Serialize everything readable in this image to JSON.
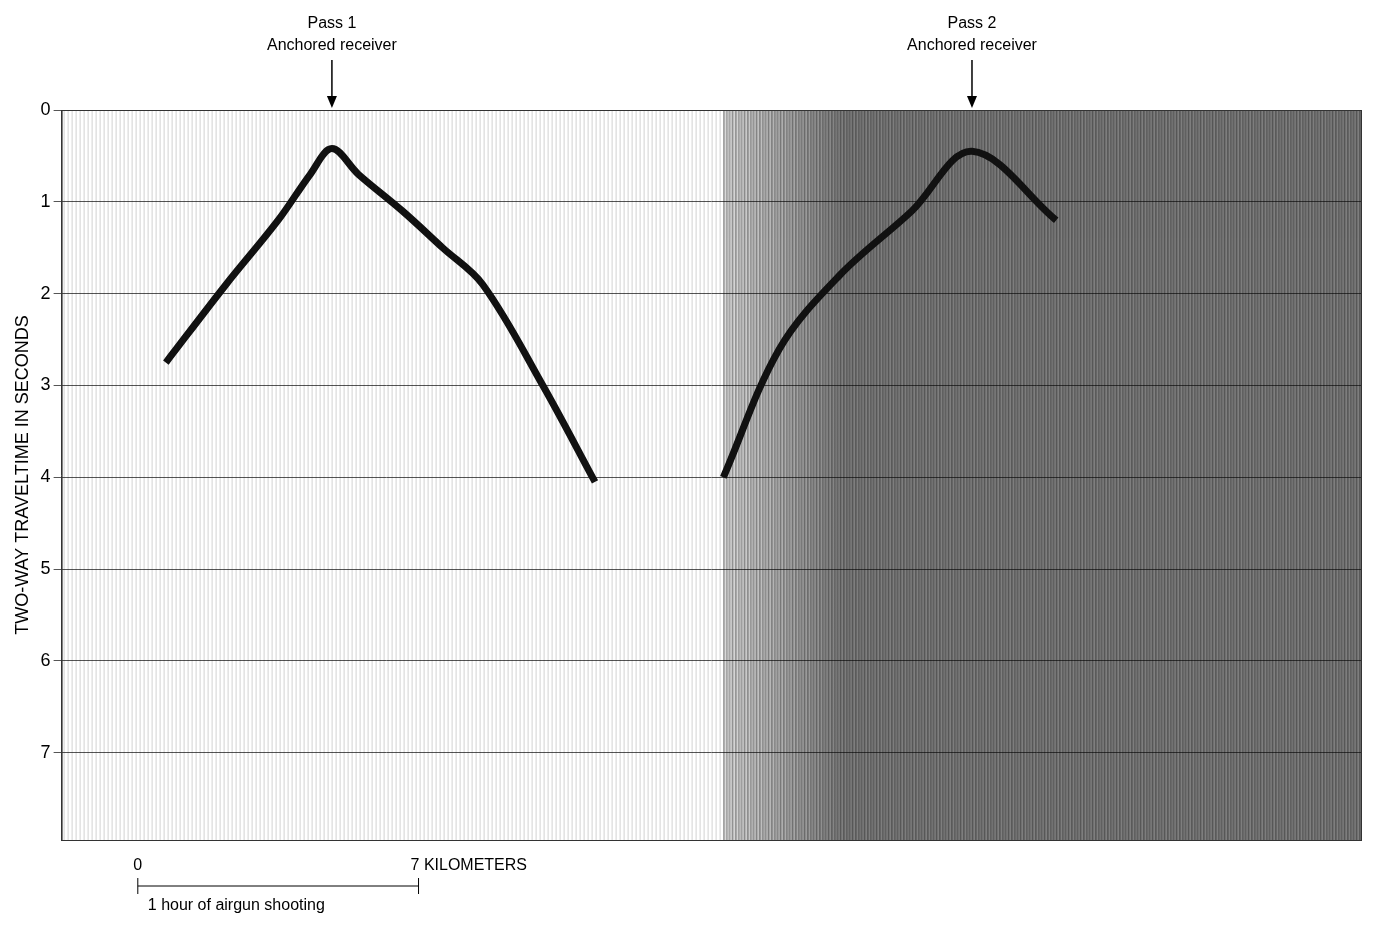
{
  "chart_data": {
    "type": "scatter",
    "y_label": "TWO-WAY TRAVELTIME IN SECONDS",
    "xlim": [
      0,
      32.4
    ],
    "ylim": [
      0,
      7.95
    ],
    "yticks": [
      0,
      1,
      2,
      3,
      4,
      5,
      6,
      7
    ],
    "grid": true,
    "tick_labels": "y",
    "color": "#111111",
    "line_style": "solid",
    "series": [
      {
        "name": "Pass 1",
        "color": "#111111",
        "x": [
          2.6,
          4.1,
          5.4,
          6.2,
          6.74,
          7.4,
          8.5,
          9.5,
          10.5,
          12.0,
          13.3
        ],
        "values": [
          2.75,
          1.9,
          1.2,
          0.7,
          0.42,
          0.7,
          1.1,
          1.5,
          1.9,
          3.0,
          4.05
        ]
      },
      {
        "name": "Pass 2",
        "color": "#111111",
        "x": [
          16.5,
          17.9,
          19.4,
          21.2,
          22.7,
          24.8
        ],
        "values": [
          4.0,
          2.6,
          1.8,
          1.1,
          0.45,
          1.2
        ]
      }
    ],
    "noise_zone": [
      16.5,
      32.4
    ],
    "annotations": [
      {
        "text": "Pass 1",
        "subtext": "Anchored receiver",
        "x": 6.74
      },
      {
        "text": "Pass 2",
        "subtext": "Anchored receiver",
        "x": 22.7
      }
    ],
    "scale_bar": {
      "x_start": 1.9,
      "start": {
        "value": 0,
        "label": "0"
      },
      "end": {
        "value": 7,
        "label": "7 KILOMETERS"
      },
      "caption": "1 hour of airgun shooting"
    }
  }
}
